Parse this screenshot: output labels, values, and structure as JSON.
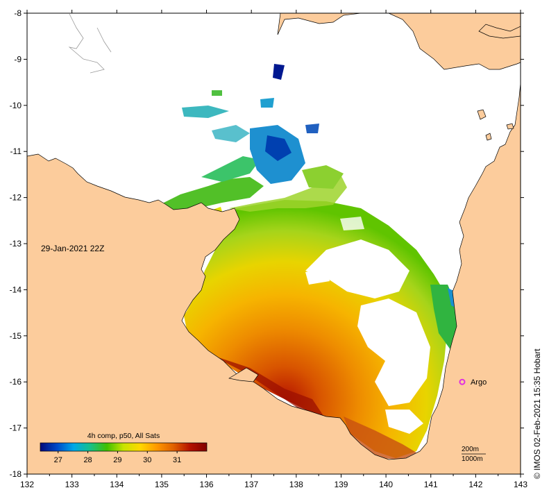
{
  "map": {
    "timestamp": "29-Jan-2021 22Z",
    "colorbar": {
      "title": "4h comp, p50, All Sats",
      "tick_labels": [
        "27",
        "28",
        "29",
        "30",
        "31"
      ],
      "min": 26.4,
      "max": 32.0,
      "colors": [
        "#000a7a",
        "#0048c8",
        "#00a8e8",
        "#16c08a",
        "#40c000",
        "#c8e400",
        "#ffd800",
        "#ff9800",
        "#e06000",
        "#b41000",
        "#800000"
      ]
    },
    "lon_labels": [
      "132",
      "133",
      "134",
      "135",
      "136",
      "137",
      "138",
      "139",
      "140",
      "141",
      "142",
      "143"
    ],
    "lat_labels": [
      "-8",
      "-9",
      "-10",
      "-11",
      "-12",
      "-13",
      "-14",
      "-15",
      "-16",
      "-17",
      "-18"
    ],
    "argo": {
      "label": "Argo",
      "lon": 141.7,
      "lat": -16.0,
      "color": "#e030e0"
    },
    "contours": [
      "200m",
      "1000m"
    ],
    "credit": "© IMOS 02-Feb-2021 15:35 Hobart",
    "colors": {
      "land": "#fccc9c",
      "ocean": "#ffffff"
    }
  }
}
